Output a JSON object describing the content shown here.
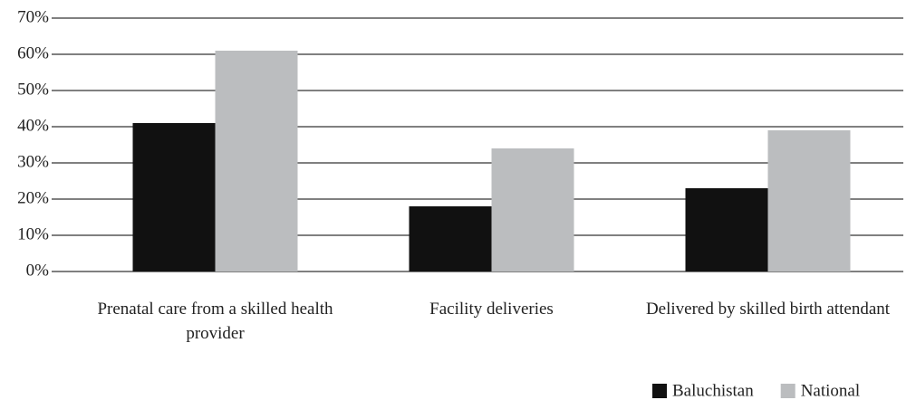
{
  "chart_data": {
    "type": "bar",
    "categories": [
      "Prenatal care from a skilled health provider",
      "Facility deliveries",
      "Delivered by skilled birth attendant"
    ],
    "series": [
      {
        "name": "Baluchistan",
        "color": "#111111",
        "values": [
          41,
          18,
          23
        ]
      },
      {
        "name": "National",
        "color": "#bbbdbf",
        "values": [
          61,
          34,
          39
        ]
      }
    ],
    "ylim": [
      0,
      70
    ],
    "yticks": [
      {
        "value": 0,
        "label": "0%"
      },
      {
        "value": 10,
        "label": "10%"
      },
      {
        "value": 20,
        "label": "20%"
      },
      {
        "value": 30,
        "label": "30%"
      },
      {
        "value": 40,
        "label": "40%"
      },
      {
        "value": 50,
        "label": "50%"
      },
      {
        "value": 60,
        "label": "60%"
      },
      {
        "value": 70,
        "label": "70%"
      }
    ],
    "grid": true,
    "legend": "bottom-right"
  }
}
